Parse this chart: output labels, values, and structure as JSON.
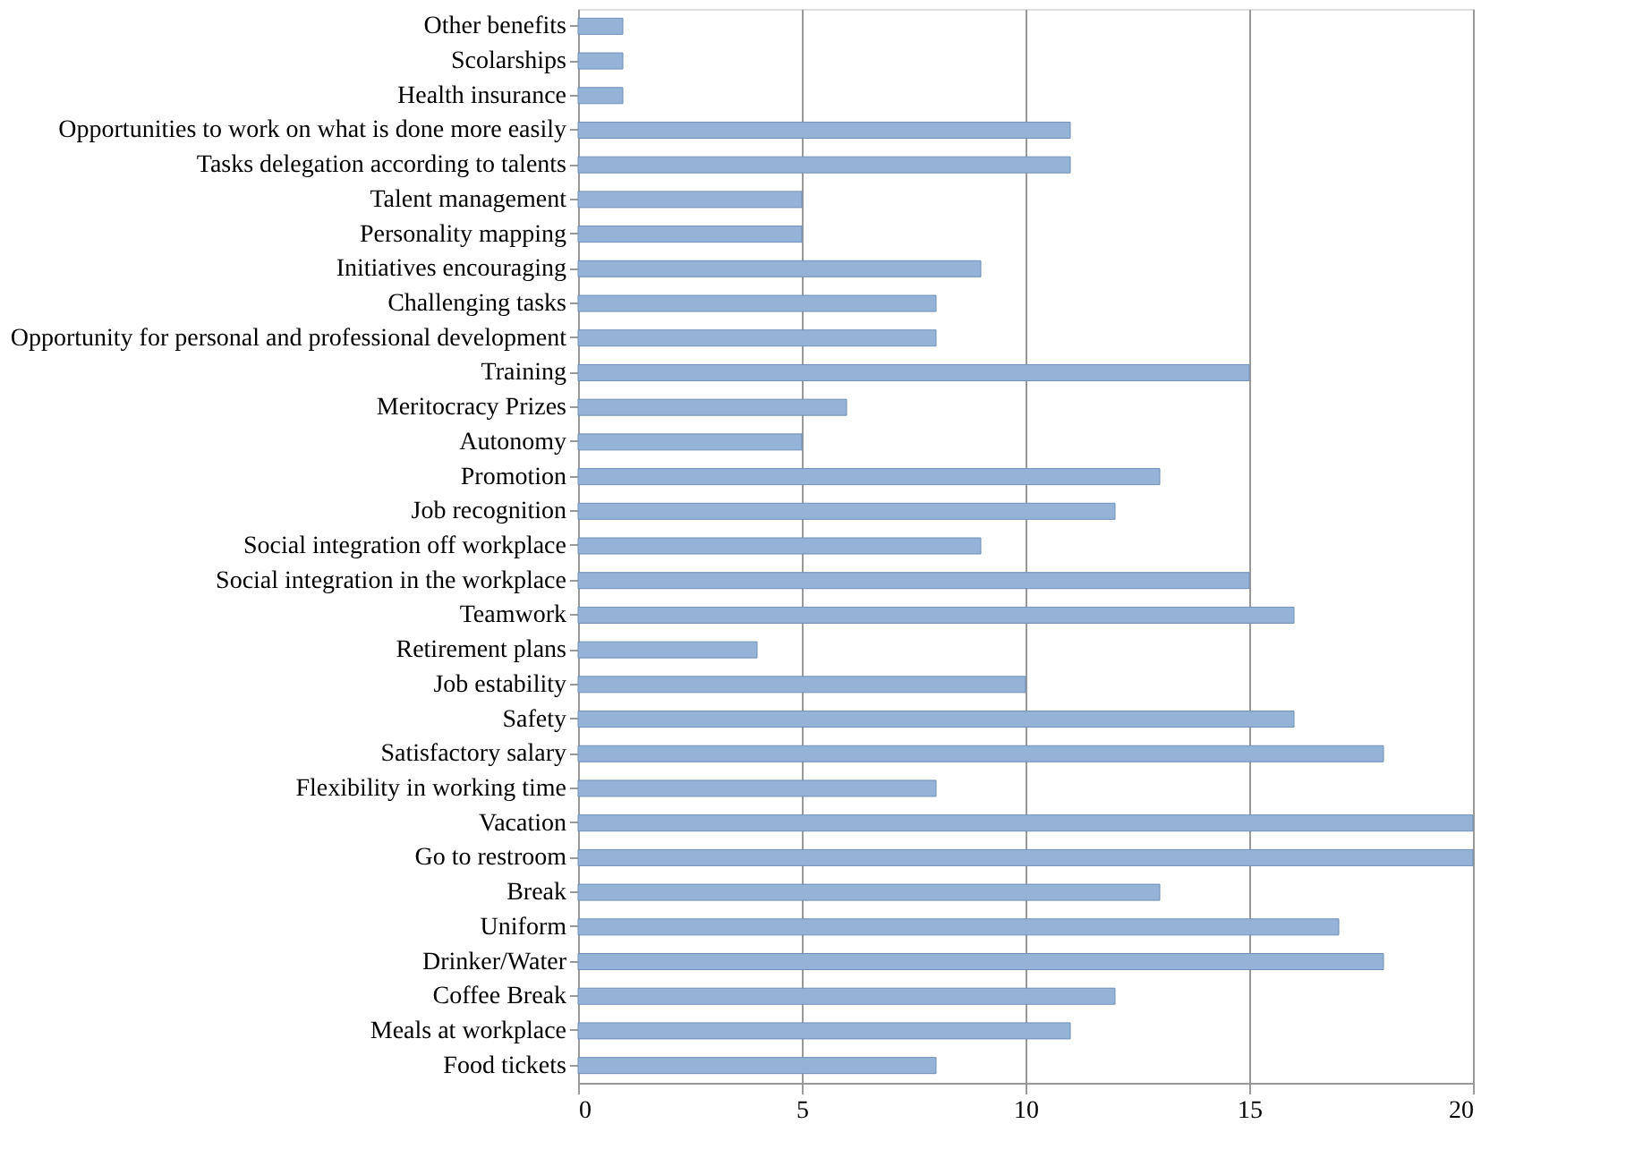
{
  "chart_data": {
    "type": "bar",
    "orientation": "horizontal",
    "categories": [
      "Other benefits",
      "Scolarships",
      "Health insurance",
      "Opportunities to work on what is done more easily",
      "Tasks delegation according to talents",
      "Talent management",
      "Personality mapping",
      "Initiatives encouraging",
      "Challenging tasks",
      "Opportunity for personal and professional development",
      "Training",
      "Meritocracy Prizes",
      "Autonomy",
      "Promotion",
      "Job recognition",
      "Social integration off workplace",
      "Social integration in the workplace",
      "Teamwork",
      "Retirement plans",
      "Job estability",
      "Safety",
      "Satisfactory salary",
      "Flexibility in working time",
      "Vacation",
      "Go to restroom",
      "Break",
      "Uniform",
      "Drinker/Water",
      "Coffee Break",
      "Meals at workplace",
      "Food tickets"
    ],
    "values": [
      1,
      1,
      1,
      11,
      11,
      5,
      5,
      9,
      8,
      8,
      15,
      6,
      5,
      13,
      12,
      9,
      15,
      16,
      4,
      10,
      16,
      18,
      8,
      20,
      20,
      13,
      17,
      18,
      12,
      11,
      8
    ],
    "color": "#95b3d7",
    "xlim": [
      0,
      20
    ],
    "xticks": [
      0,
      5,
      10,
      15,
      20
    ],
    "grid": "x"
  }
}
